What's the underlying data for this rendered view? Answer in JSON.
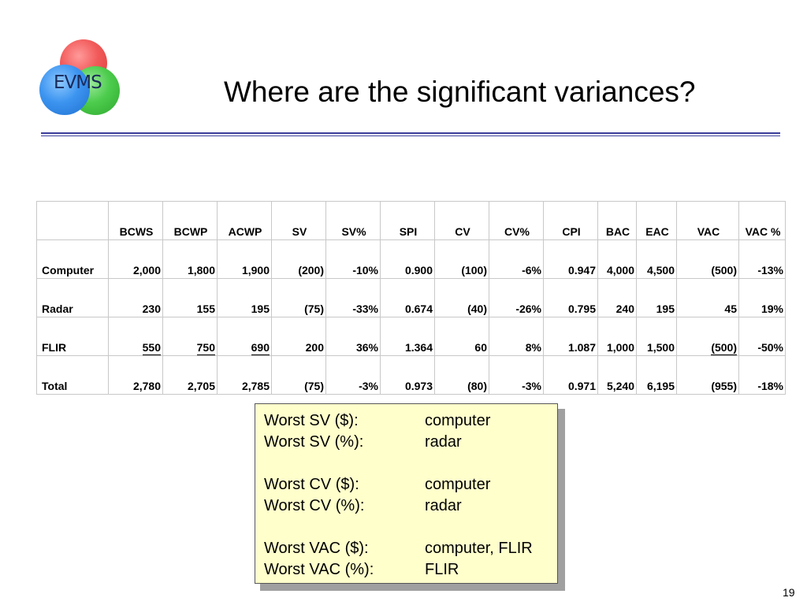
{
  "logo": {
    "text": "EVMS"
  },
  "title": "Where are the significant variances?",
  "table": {
    "headers": [
      "",
      "BCWS",
      "BCWP",
      "ACWP",
      "SV",
      "SV%",
      "SPI",
      "CV",
      "CV%",
      "CPI",
      "BAC",
      "EAC",
      "VAC",
      "VAC %"
    ],
    "rows": [
      {
        "label": "Computer",
        "values": [
          "2,000",
          "1,800",
          "1,900",
          "(200)",
          "-10%",
          "0.900",
          "(100)",
          "-6%",
          "0.947",
          "4,000",
          "4,500",
          "(500)",
          "-13%"
        ]
      },
      {
        "label": "Radar",
        "values": [
          "230",
          "155",
          "195",
          "(75)",
          "-33%",
          "0.674",
          "(40)",
          "-26%",
          "0.795",
          "240",
          "195",
          "45",
          "19%"
        ]
      },
      {
        "label": "FLIR",
        "values": [
          "550",
          "750",
          "690",
          "200",
          "36%",
          "1.364",
          "60",
          "8%",
          "1.087",
          "1,000",
          "1,500",
          "(500)",
          "-50%"
        ]
      },
      {
        "label": "Total",
        "values": [
          "2,780",
          "2,705",
          "2,785",
          "(75)",
          "-3%",
          "0.973",
          "(80)",
          "-3%",
          "0.971",
          "5,240",
          "6,195",
          "(955)",
          "-18%"
        ]
      }
    ]
  },
  "summary": [
    {
      "label": "Worst SV ($):",
      "value": "computer"
    },
    {
      "label": "Worst SV (%):",
      "value": "radar"
    },
    {
      "label": "Worst CV ($):",
      "value": "computer"
    },
    {
      "label": "Worst CV (%):",
      "value": "radar"
    },
    {
      "label": "Worst VAC ($):",
      "value": "computer, FLIR"
    },
    {
      "label": "Worst VAC (%):",
      "value": "FLIR"
    }
  ],
  "page_number": "19",
  "colors": {
    "rule": "#3b3f9a",
    "note_bg": "#ffffcc",
    "logo_red": "#f25a5a",
    "logo_green": "#4ccc4c",
    "logo_blue": "#3d95f0"
  }
}
